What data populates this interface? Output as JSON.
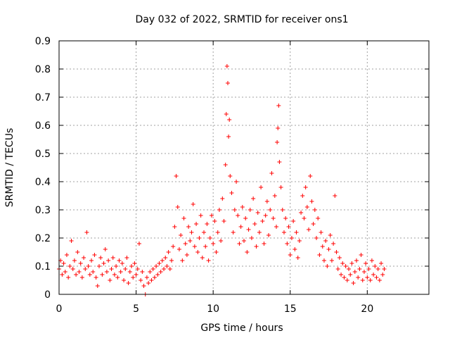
{
  "chart_data": {
    "type": "scatter",
    "title": "Day 032 of 2022, SRMTID for receiver ons1",
    "xlabel": "GPS time / hours",
    "ylabel": "SRMTID / TECUs",
    "xlim": [
      0,
      24
    ],
    "ylim": [
      0,
      0.9
    ],
    "x_ticks": [
      0,
      5,
      10,
      15,
      20
    ],
    "x_tick_labels": [
      "0",
      "5",
      "10",
      "15",
      "20"
    ],
    "y_ticks": [
      0,
      0.1,
      0.2,
      0.3,
      0.4,
      0.5,
      0.6,
      0.7,
      0.8,
      0.9
    ],
    "y_tick_labels": [
      "0",
      "0.1",
      "0.2",
      "0.3",
      "0.4",
      "0.5",
      "0.6",
      "0.7",
      "0.8",
      "0.9"
    ],
    "grid": true,
    "marker": "+",
    "marker_color": "#ff0000",
    "series": [
      {
        "name": "SRMTID",
        "points": [
          [
            0.0,
            0.09
          ],
          [
            0.1,
            0.12
          ],
          [
            0.2,
            0.07
          ],
          [
            0.3,
            0.11
          ],
          [
            0.4,
            0.08
          ],
          [
            0.5,
            0.14
          ],
          [
            0.6,
            0.06
          ],
          [
            0.7,
            0.1
          ],
          [
            0.8,
            0.19
          ],
          [
            0.9,
            0.09
          ],
          [
            1.0,
            0.12
          ],
          [
            1.1,
            0.07
          ],
          [
            1.2,
            0.15
          ],
          [
            1.3,
            0.08
          ],
          [
            1.4,
            0.11
          ],
          [
            1.5,
            0.06
          ],
          [
            1.6,
            0.13
          ],
          [
            1.7,
            0.09
          ],
          [
            1.8,
            0.22
          ],
          [
            1.9,
            0.1
          ],
          [
            2.0,
            0.07
          ],
          [
            2.1,
            0.12
          ],
          [
            2.2,
            0.08
          ],
          [
            2.3,
            0.14
          ],
          [
            2.4,
            0.06
          ],
          [
            2.5,
            0.03
          ],
          [
            2.6,
            0.1
          ],
          [
            2.7,
            0.13
          ],
          [
            2.8,
            0.07
          ],
          [
            2.9,
            0.11
          ],
          [
            3.0,
            0.16
          ],
          [
            3.1,
            0.08
          ],
          [
            3.2,
            0.12
          ],
          [
            3.3,
            0.05
          ],
          [
            3.4,
            0.09
          ],
          [
            3.5,
            0.13
          ],
          [
            3.6,
            0.07
          ],
          [
            3.7,
            0.1
          ],
          [
            3.8,
            0.06
          ],
          [
            3.9,
            0.12
          ],
          [
            4.0,
            0.08
          ],
          [
            4.1,
            0.11
          ],
          [
            4.2,
            0.05
          ],
          [
            4.3,
            0.09
          ],
          [
            4.4,
            0.13
          ],
          [
            4.5,
            0.04
          ],
          [
            4.6,
            0.08
          ],
          [
            4.7,
            0.1
          ],
          [
            4.8,
            0.06
          ],
          [
            4.9,
            0.11
          ],
          [
            5.0,
            0.07
          ],
          [
            5.1,
            0.09
          ],
          [
            5.2,
            0.18
          ],
          [
            5.3,
            0.05
          ],
          [
            5.4,
            0.08
          ],
          [
            5.5,
            0.03
          ],
          [
            5.6,
            0.0
          ],
          [
            5.7,
            0.06
          ],
          [
            5.8,
            0.04
          ],
          [
            5.9,
            0.08
          ],
          [
            6.0,
            0.05
          ],
          [
            6.1,
            0.09
          ],
          [
            6.2,
            0.06
          ],
          [
            6.3,
            0.1
          ],
          [
            6.4,
            0.07
          ],
          [
            6.5,
            0.11
          ],
          [
            6.6,
            0.08
          ],
          [
            6.7,
            0.12
          ],
          [
            6.8,
            0.09
          ],
          [
            6.9,
            0.13
          ],
          [
            7.0,
            0.1
          ],
          [
            7.1,
            0.15
          ],
          [
            7.2,
            0.09
          ],
          [
            7.3,
            0.12
          ],
          [
            7.4,
            0.17
          ],
          [
            7.5,
            0.24
          ],
          [
            7.6,
            0.42
          ],
          [
            7.7,
            0.31
          ],
          [
            7.8,
            0.16
          ],
          [
            7.9,
            0.21
          ],
          [
            8.0,
            0.12
          ],
          [
            8.1,
            0.27
          ],
          [
            8.2,
            0.18
          ],
          [
            8.3,
            0.14
          ],
          [
            8.4,
            0.24
          ],
          [
            8.5,
            0.19
          ],
          [
            8.6,
            0.22
          ],
          [
            8.7,
            0.32
          ],
          [
            8.8,
            0.17
          ],
          [
            8.9,
            0.25
          ],
          [
            9.0,
            0.15
          ],
          [
            9.1,
            0.2
          ],
          [
            9.2,
            0.28
          ],
          [
            9.3,
            0.13
          ],
          [
            9.4,
            0.22
          ],
          [
            9.5,
            0.17
          ],
          [
            9.6,
            0.25
          ],
          [
            9.7,
            0.12
          ],
          [
            9.8,
            0.2
          ],
          [
            9.9,
            0.28
          ],
          [
            10.0,
            0.18
          ],
          [
            10.1,
            0.26
          ],
          [
            10.2,
            0.15
          ],
          [
            10.3,
            0.22
          ],
          [
            10.4,
            0.3
          ],
          [
            10.5,
            0.19
          ],
          [
            10.6,
            0.34
          ],
          [
            10.7,
            0.26
          ],
          [
            10.8,
            0.46
          ],
          [
            10.85,
            0.64
          ],
          [
            10.9,
            0.81
          ],
          [
            10.95,
            0.75
          ],
          [
            11.0,
            0.56
          ],
          [
            11.05,
            0.62
          ],
          [
            11.1,
            0.42
          ],
          [
            11.2,
            0.36
          ],
          [
            11.3,
            0.22
          ],
          [
            11.4,
            0.3
          ],
          [
            11.5,
            0.4
          ],
          [
            11.6,
            0.28
          ],
          [
            11.7,
            0.18
          ],
          [
            11.8,
            0.24
          ],
          [
            11.9,
            0.31
          ],
          [
            12.0,
            0.19
          ],
          [
            12.1,
            0.27
          ],
          [
            12.2,
            0.15
          ],
          [
            12.3,
            0.23
          ],
          [
            12.4,
            0.3
          ],
          [
            12.5,
            0.2
          ],
          [
            12.6,
            0.34
          ],
          [
            12.7,
            0.25
          ],
          [
            12.8,
            0.17
          ],
          [
            12.9,
            0.29
          ],
          [
            13.0,
            0.22
          ],
          [
            13.1,
            0.38
          ],
          [
            13.2,
            0.26
          ],
          [
            13.3,
            0.18
          ],
          [
            13.4,
            0.28
          ],
          [
            13.5,
            0.33
          ],
          [
            13.6,
            0.21
          ],
          [
            13.7,
            0.3
          ],
          [
            13.8,
            0.43
          ],
          [
            13.9,
            0.27
          ],
          [
            14.0,
            0.35
          ],
          [
            14.1,
            0.24
          ],
          [
            14.15,
            0.54
          ],
          [
            14.2,
            0.59
          ],
          [
            14.25,
            0.67
          ],
          [
            14.3,
            0.47
          ],
          [
            14.4,
            0.38
          ],
          [
            14.5,
            0.3
          ],
          [
            14.6,
            0.22
          ],
          [
            14.7,
            0.27
          ],
          [
            14.8,
            0.18
          ],
          [
            14.9,
            0.24
          ],
          [
            15.0,
            0.14
          ],
          [
            15.1,
            0.2
          ],
          [
            15.2,
            0.26
          ],
          [
            15.3,
            0.16
          ],
          [
            15.4,
            0.22
          ],
          [
            15.5,
            0.13
          ],
          [
            15.6,
            0.19
          ],
          [
            15.7,
            0.29
          ],
          [
            15.8,
            0.35
          ],
          [
            15.9,
            0.27
          ],
          [
            16.0,
            0.38
          ],
          [
            16.1,
            0.31
          ],
          [
            16.2,
            0.23
          ],
          [
            16.3,
            0.42
          ],
          [
            16.4,
            0.33
          ],
          [
            16.5,
            0.25
          ],
          [
            16.6,
            0.3
          ],
          [
            16.7,
            0.2
          ],
          [
            16.8,
            0.27
          ],
          [
            16.9,
            0.14
          ],
          [
            17.0,
            0.22
          ],
          [
            17.1,
            0.17
          ],
          [
            17.2,
            0.12
          ],
          [
            17.3,
            0.19
          ],
          [
            17.4,
            0.1
          ],
          [
            17.5,
            0.16
          ],
          [
            17.6,
            0.21
          ],
          [
            17.7,
            0.12
          ],
          [
            17.8,
            0.18
          ],
          [
            17.9,
            0.35
          ],
          [
            18.0,
            0.15
          ],
          [
            18.1,
            0.09
          ],
          [
            18.2,
            0.13
          ],
          [
            18.3,
            0.07
          ],
          [
            18.4,
            0.11
          ],
          [
            18.5,
            0.06
          ],
          [
            18.6,
            0.1
          ],
          [
            18.7,
            0.05
          ],
          [
            18.8,
            0.09
          ],
          [
            18.9,
            0.07
          ],
          [
            19.0,
            0.11
          ],
          [
            19.1,
            0.04
          ],
          [
            19.2,
            0.08
          ],
          [
            19.3,
            0.12
          ],
          [
            19.4,
            0.06
          ],
          [
            19.5,
            0.09
          ],
          [
            19.6,
            0.14
          ],
          [
            19.7,
            0.05
          ],
          [
            19.8,
            0.08
          ],
          [
            19.9,
            0.11
          ],
          [
            20.0,
            0.06
          ],
          [
            20.1,
            0.09
          ],
          [
            20.2,
            0.05
          ],
          [
            20.3,
            0.12
          ],
          [
            20.4,
            0.07
          ],
          [
            20.5,
            0.1
          ],
          [
            20.6,
            0.06
          ],
          [
            20.7,
            0.09
          ],
          [
            20.8,
            0.05
          ],
          [
            20.9,
            0.11
          ],
          [
            21.0,
            0.07
          ],
          [
            21.1,
            0.09
          ]
        ]
      }
    ]
  }
}
